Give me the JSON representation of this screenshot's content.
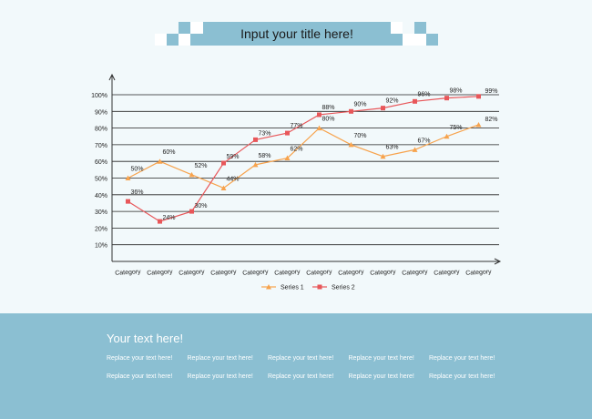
{
  "header": {
    "title": "Input your title here!"
  },
  "chart_data": {
    "type": "line",
    "categories": [
      "Category",
      "Category",
      "Category",
      "Category",
      "Category",
      "Category",
      "Category",
      "Category",
      "Category",
      "Category",
      "Category",
      "Category"
    ],
    "series": [
      {
        "name": "Series 1",
        "values": [
          50,
          60,
          52,
          44,
          58,
          62,
          80,
          70,
          63,
          67,
          75,
          82
        ],
        "color": "#f7a34d",
        "marker": "triangle"
      },
      {
        "name": "Series 2",
        "values": [
          36,
          24,
          30,
          59,
          73,
          77,
          88,
          90,
          92,
          96,
          98,
          99
        ],
        "color": "#e8575a",
        "marker": "square"
      }
    ],
    "y_ticks": [
      "10%",
      "20%",
      "30%",
      "40%",
      "50%",
      "60%",
      "70%",
      "80%",
      "90%",
      "100%"
    ],
    "ylim": [
      0,
      100
    ],
    "value_suffix": "%",
    "grid": true,
    "legend_position": "bottom",
    "title": "",
    "xlabel": "",
    "ylabel": ""
  },
  "footer": {
    "heading": "Your text here!",
    "rows": [
      [
        "Replace your text here!",
        "Replace your text here!",
        "Replace your text here!",
        "Replace your text here!",
        "Replace your text here!"
      ],
      [
        "Replace your text here!",
        "Replace your text here!",
        "Replace your text here!",
        "Replace your text here!",
        "Replace your text here!"
      ]
    ]
  },
  "colors": {
    "banner": "#8bbfd2",
    "accent": "#8bbfd2",
    "background": "#f2f9fb"
  }
}
